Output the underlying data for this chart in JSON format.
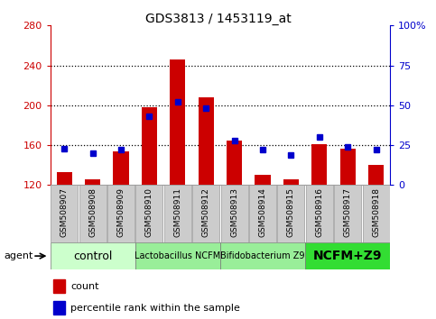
{
  "title": "GDS3813 / 1453119_at",
  "samples": [
    "GSM508907",
    "GSM508908",
    "GSM508909",
    "GSM508910",
    "GSM508911",
    "GSM508912",
    "GSM508913",
    "GSM508914",
    "GSM508915",
    "GSM508916",
    "GSM508917",
    "GSM508918"
  ],
  "counts": [
    133,
    126,
    154,
    198,
    246,
    208,
    165,
    130,
    126,
    161,
    156,
    140
  ],
  "percentiles": [
    23,
    20,
    22,
    43,
    52,
    48,
    28,
    22,
    19,
    30,
    24,
    22
  ],
  "ylim_left": [
    120,
    280
  ],
  "ylim_right": [
    0,
    100
  ],
  "yticks_left": [
    120,
    160,
    200,
    240,
    280
  ],
  "yticks_right": [
    0,
    25,
    50,
    75,
    100
  ],
  "bar_color": "#cc0000",
  "dot_color": "#0000cc",
  "bar_bottom": 120,
  "group_defs": [
    {
      "start": 0,
      "end": 3,
      "color": "#ccffcc",
      "label": "control",
      "fontsize": 9,
      "bold": false
    },
    {
      "start": 3,
      "end": 6,
      "color": "#99ee99",
      "label": "Lactobacillus NCFM",
      "fontsize": 7,
      "bold": false
    },
    {
      "start": 6,
      "end": 9,
      "color": "#99ee99",
      "label": "Bifidobacterium Z9",
      "fontsize": 7,
      "bold": false
    },
    {
      "start": 9,
      "end": 12,
      "color": "#33dd33",
      "label": "NCFM+Z9",
      "fontsize": 10,
      "bold": true
    }
  ],
  "left_axis_color": "#cc0000",
  "right_axis_color": "#0000cc",
  "legend_count_label": "count",
  "legend_pct_label": "percentile rank within the sample",
  "gray_box_color": "#cccccc",
  "gray_box_edge": "#999999"
}
